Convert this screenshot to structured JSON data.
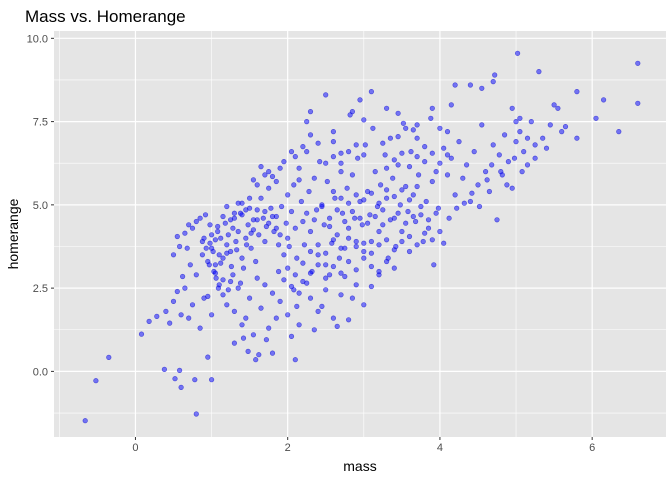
{
  "chart_data": {
    "type": "scatter",
    "title": "Mass vs. Homerange",
    "xlabel": "mass",
    "ylabel": "homerange",
    "xlim": [
      -1.07,
      6.97
    ],
    "ylim": [
      -1.97,
      10.22
    ],
    "x_ticks": [
      0,
      2,
      4,
      6
    ],
    "y_ticks": [
      0.0,
      2.5,
      5.0,
      7.5,
      10.0
    ],
    "x_tick_labels": [
      "0",
      "2",
      "4",
      "6"
    ],
    "y_tick_labels": [
      "0.0",
      "2.5",
      "5.0",
      "7.5",
      "10.0"
    ],
    "grid": true,
    "panel_background": "#e5e5e5",
    "grid_color": "#ffffff",
    "point_color": "#0000ff",
    "point_opacity": 0.5,
    "points": [
      [
        -0.66,
        -1.48
      ],
      [
        -0.52,
        -0.28
      ],
      [
        -0.35,
        0.42
      ],
      [
        0.08,
        1.12
      ],
      [
        0.38,
        0.06
      ],
      [
        0.52,
        -0.22
      ],
      [
        0.58,
        0.03
      ],
      [
        0.6,
        -0.48
      ],
      [
        0.78,
        -0.25
      ],
      [
        0.8,
        -1.28
      ],
      [
        0.95,
        0.43
      ],
      [
        1.0,
        -0.25
      ],
      [
        0.18,
        1.5
      ],
      [
        0.28,
        1.65
      ],
      [
        0.4,
        1.8
      ],
      [
        0.45,
        1.45
      ],
      [
        0.5,
        2.1
      ],
      [
        0.55,
        2.4
      ],
      [
        0.6,
        1.7
      ],
      [
        0.65,
        2.5
      ],
      [
        0.7,
        1.6
      ],
      [
        0.75,
        2.0
      ],
      [
        0.8,
        2.9
      ],
      [
        0.85,
        1.3
      ],
      [
        0.9,
        2.2
      ],
      [
        0.95,
        2.25
      ],
      [
        1.0,
        1.7
      ],
      [
        0.62,
        2.85
      ],
      [
        0.68,
        3.7
      ],
      [
        0.72,
        3.2
      ],
      [
        0.5,
        3.5
      ],
      [
        0.55,
        4.05
      ],
      [
        0.58,
        3.75
      ],
      [
        0.65,
        4.15
      ],
      [
        0.7,
        4.4
      ],
      [
        0.75,
        4.3
      ],
      [
        0.8,
        4.5
      ],
      [
        0.85,
        4.6
      ],
      [
        0.88,
        3.9
      ],
      [
        0.92,
        4.7
      ],
      [
        0.95,
        3.3
      ],
      [
        0.98,
        3.85
      ],
      [
        1.0,
        4.1
      ],
      [
        1.02,
        3.6
      ],
      [
        1.05,
        3.95
      ],
      [
        1.08,
        4.2
      ],
      [
        1.1,
        3.5
      ],
      [
        1.12,
        4.0
      ],
      [
        0.9,
        4.0
      ],
      [
        0.93,
        3.7
      ],
      [
        0.97,
        3.2
      ],
      [
        1.03,
        3.0
      ],
      [
        1.06,
        2.8
      ],
      [
        1.09,
        2.5
      ],
      [
        1.15,
        3.4
      ],
      [
        1.18,
        4.45
      ],
      [
        1.2,
        3.8
      ],
      [
        1.22,
        4.1
      ],
      [
        1.25,
        3.6
      ],
      [
        1.28,
        4.3
      ],
      [
        1.3,
        4.6
      ],
      [
        1.32,
        3.9
      ],
      [
        1.35,
        4.2
      ],
      [
        1.38,
        4.75
      ],
      [
        1.4,
        3.4
      ],
      [
        1.42,
        3.1
      ],
      [
        1.45,
        4.0
      ],
      [
        1.48,
        4.4
      ],
      [
        1.5,
        4.9
      ],
      [
        1.52,
        3.7
      ],
      [
        1.55,
        4.55
      ],
      [
        1.58,
        3.3
      ],
      [
        1.6,
        4.85
      ],
      [
        1.62,
        4.1
      ],
      [
        1.65,
        5.2
      ],
      [
        1.68,
        4.6
      ],
      [
        1.7,
        3.9
      ],
      [
        1.72,
        4.35
      ],
      [
        1.75,
        5.5
      ],
      [
        1.78,
        4.9
      ],
      [
        1.8,
        5.85
      ],
      [
        1.82,
        4.2
      ],
      [
        1.85,
        4.65
      ],
      [
        1.88,
        3.8
      ],
      [
        1.9,
        4.1
      ],
      [
        1.92,
        4.95
      ],
      [
        1.95,
        3.5
      ],
      [
        1.98,
        4.45
      ],
      [
        2.0,
        4.0
      ],
      [
        2.02,
        3.75
      ],
      [
        1.15,
        2.3
      ],
      [
        1.2,
        2.0
      ],
      [
        1.25,
        2.7
      ],
      [
        1.3,
        1.8
      ],
      [
        1.35,
        2.5
      ],
      [
        1.4,
        1.4
      ],
      [
        1.45,
        1.6
      ],
      [
        1.5,
        2.2
      ],
      [
        1.55,
        1.1
      ],
      [
        1.6,
        2.8
      ],
      [
        1.62,
        0.5
      ],
      [
        1.65,
        1.9
      ],
      [
        1.7,
        2.6
      ],
      [
        1.75,
        1.3
      ],
      [
        1.8,
        2.35
      ],
      [
        1.85,
        1.6
      ],
      [
        1.88,
        3.0
      ],
      [
        1.9,
        2.1
      ],
      [
        1.95,
        2.75
      ],
      [
        2.0,
        1.7
      ],
      [
        2.05,
        1.05
      ],
      [
        2.08,
        2.45
      ],
      [
        2.1,
        0.35
      ],
      [
        2.12,
        1.95
      ],
      [
        1.3,
        0.85
      ],
      [
        1.42,
        1.0
      ],
      [
        1.48,
        0.6
      ],
      [
        1.58,
        0.35
      ],
      [
        1.72,
        0.95
      ],
      [
        1.8,
        0.55
      ],
      [
        1.0,
        3.7
      ],
      [
        1.05,
        3.2
      ],
      [
        0.98,
        4.4
      ],
      [
        1.08,
        4.35
      ],
      [
        1.12,
        3.25
      ],
      [
        0.88,
        3.5
      ],
      [
        1.2,
        3.55
      ],
      [
        1.26,
        3.15
      ],
      [
        1.33,
        3.65
      ],
      [
        1.4,
        4.7
      ],
      [
        1.46,
        3.8
      ],
      [
        1.52,
        4.15
      ],
      [
        2.0,
        5.3
      ],
      [
        2.05,
        4.8
      ],
      [
        2.08,
        5.6
      ],
      [
        2.1,
        4.3
      ],
      [
        2.12,
        3.4
      ],
      [
        2.15,
        6.1
      ],
      [
        2.18,
        5.1
      ],
      [
        2.2,
        4.5
      ],
      [
        2.22,
        3.8
      ],
      [
        2.25,
        6.6
      ],
      [
        2.28,
        5.4
      ],
      [
        2.3,
        4.2
      ],
      [
        2.32,
        3.0
      ],
      [
        2.35,
        5.8
      ],
      [
        2.38,
        4.85
      ],
      [
        2.4,
        3.5
      ],
      [
        2.42,
        6.3
      ],
      [
        2.45,
        5.0
      ],
      [
        2.48,
        4.4
      ],
      [
        2.5,
        3.2
      ],
      [
        2.52,
        5.7
      ],
      [
        2.55,
        4.6
      ],
      [
        2.58,
        3.85
      ],
      [
        2.6,
        6.9
      ],
      [
        2.62,
        5.2
      ],
      [
        2.65,
        4.1
      ],
      [
        2.68,
        3.4
      ],
      [
        2.7,
        6.0
      ],
      [
        2.72,
        4.75
      ],
      [
        2.75,
        3.7
      ],
      [
        2.78,
        5.5
      ],
      [
        2.8,
        4.3
      ],
      [
        2.82,
        7.7
      ],
      [
        2.85,
        5.9
      ],
      [
        2.88,
        4.6
      ],
      [
        2.9,
        3.9
      ],
      [
        2.92,
        6.4
      ],
      [
        2.95,
        5.1
      ],
      [
        2.98,
        4.4
      ],
      [
        3.0,
        3.6
      ],
      [
        3.02,
        6.8
      ],
      [
        3.05,
        5.4
      ],
      [
        3.08,
        4.7
      ],
      [
        3.1,
        3.9
      ],
      [
        3.12,
        7.3
      ],
      [
        3.15,
        6.0
      ],
      [
        3.18,
        4.95
      ],
      [
        3.2,
        4.2
      ],
      [
        3.22,
        5.6
      ],
      [
        3.25,
        4.4
      ],
      [
        3.28,
        6.5
      ],
      [
        3.3,
        5.2
      ],
      [
        3.32,
        3.4
      ],
      [
        3.35,
        7.0
      ],
      [
        3.38,
        5.8
      ],
      [
        3.4,
        4.6
      ],
      [
        3.42,
        3.75
      ],
      [
        3.45,
        6.2
      ],
      [
        3.48,
        5.0
      ],
      [
        3.5,
        4.2
      ],
      [
        3.52,
        7.45
      ],
      [
        3.55,
        5.55
      ],
      [
        3.58,
        4.8
      ],
      [
        3.6,
        3.6
      ],
      [
        3.62,
        6.6
      ],
      [
        3.65,
        5.3
      ],
      [
        3.68,
        4.5
      ],
      [
        3.7,
        7.0
      ],
      [
        3.72,
        5.9
      ],
      [
        3.75,
        4.7
      ],
      [
        3.78,
        3.9
      ],
      [
        3.8,
        6.3
      ],
      [
        3.82,
        5.1
      ],
      [
        3.85,
        4.3
      ],
      [
        3.88,
        7.6
      ],
      [
        3.9,
        5.7
      ],
      [
        3.92,
        3.2
      ],
      [
        3.95,
        6.0
      ],
      [
        3.98,
        4.9
      ],
      [
        4.0,
        4.2
      ],
      [
        2.2,
        2.7
      ],
      [
        2.3,
        2.2
      ],
      [
        2.4,
        1.8
      ],
      [
        2.5,
        2.45
      ],
      [
        2.6,
        1.6
      ],
      [
        2.7,
        2.3
      ],
      [
        2.8,
        1.55
      ],
      [
        2.9,
        2.6
      ],
      [
        3.0,
        2.0
      ],
      [
        2.15,
        1.4
      ],
      [
        2.35,
        1.25
      ],
      [
        2.55,
        2.9
      ],
      [
        2.75,
        2.85
      ],
      [
        2.85,
        2.2
      ],
      [
        2.45,
        1.95
      ],
      [
        2.65,
        1.35
      ],
      [
        3.1,
        2.55
      ],
      [
        3.2,
        2.9
      ],
      [
        2.25,
        7.5
      ],
      [
        2.3,
        7.8
      ],
      [
        2.5,
        8.3
      ],
      [
        2.85,
        7.8
      ],
      [
        2.95,
        8.15
      ],
      [
        3.0,
        7.55
      ],
      [
        3.1,
        8.4
      ],
      [
        3.3,
        7.9
      ],
      [
        3.45,
        7.75
      ],
      [
        3.55,
        7.3
      ],
      [
        3.7,
        7.4
      ],
      [
        3.9,
        7.9
      ],
      [
        4.1,
        7.2
      ],
      [
        4.15,
        8.0
      ],
      [
        4.2,
        8.6
      ],
      [
        4.4,
        8.6
      ],
      [
        4.55,
        8.5
      ],
      [
        4.7,
        8.7
      ],
      [
        4.72,
        8.9
      ],
      [
        4.95,
        7.9
      ],
      [
        5.05,
        7.6
      ],
      [
        5.02,
        9.55
      ],
      [
        5.3,
        9.0
      ],
      [
        5.5,
        8.0
      ],
      [
        5.8,
        8.4
      ],
      [
        6.6,
        9.25
      ],
      [
        6.6,
        8.05
      ],
      [
        6.35,
        7.2
      ],
      [
        6.15,
        8.15
      ],
      [
        6.05,
        7.6
      ],
      [
        5.8,
        7.0
      ],
      [
        5.65,
        7.35
      ],
      [
        5.55,
        7.9
      ],
      [
        5.45,
        7.4
      ],
      [
        5.15,
        7.0
      ],
      [
        5.0,
        7.5
      ],
      [
        4.0,
        7.3
      ],
      [
        4.05,
        6.7
      ],
      [
        4.1,
        5.9
      ],
      [
        4.15,
        6.4
      ],
      [
        4.2,
        5.3
      ],
      [
        4.25,
        6.9
      ],
      [
        4.3,
        5.8
      ],
      [
        4.35,
        6.2
      ],
      [
        4.4,
        5.1
      ],
      [
        4.45,
        6.6
      ],
      [
        4.5,
        5.6
      ],
      [
        4.55,
        7.4
      ],
      [
        4.6,
        6.0
      ],
      [
        4.65,
        5.4
      ],
      [
        4.7,
        6.8
      ],
      [
        4.75,
        4.55
      ],
      [
        4.78,
        6.5
      ],
      [
        4.82,
        5.9
      ],
      [
        4.85,
        7.1
      ],
      [
        4.9,
        6.3
      ],
      [
        4.95,
        5.5
      ],
      [
        5.0,
        6.9
      ],
      [
        5.05,
        7.2
      ],
      [
        5.1,
        6.6
      ],
      [
        5.15,
        6.2
      ],
      [
        5.2,
        7.5
      ],
      [
        5.25,
        6.8
      ],
      [
        5.35,
        7.0
      ],
      [
        5.4,
        6.7
      ],
      [
        5.6,
        7.2
      ],
      [
        4.12,
        4.6
      ],
      [
        4.22,
        4.9
      ],
      [
        4.32,
        5.05
      ],
      [
        4.42,
        5.35
      ],
      [
        4.52,
        4.95
      ],
      [
        4.62,
        5.75
      ],
      [
        4.68,
        6.2
      ],
      [
        4.8,
        6.0
      ],
      [
        4.88,
        5.6
      ],
      [
        4.98,
        6.4
      ],
      [
        5.08,
        6.0
      ],
      [
        5.25,
        6.4
      ],
      [
        2.1,
        6.45
      ],
      [
        2.2,
        6.75
      ],
      [
        2.3,
        7.1
      ],
      [
        2.4,
        6.85
      ],
      [
        2.6,
        7.2
      ],
      [
        2.7,
        6.55
      ],
      [
        1.75,
        6.0
      ],
      [
        1.85,
        5.7
      ],
      [
        1.95,
        6.3
      ],
      [
        2.05,
        6.6
      ],
      [
        1.6,
        5.6
      ],
      [
        1.7,
        5.9
      ],
      [
        1.5,
        5.2
      ],
      [
        1.55,
        5.75
      ],
      [
        1.4,
        5.05
      ],
      [
        1.65,
        6.15
      ],
      [
        1.9,
        6.1
      ],
      [
        2.15,
        5.75
      ],
      [
        2.25,
        4.75
      ],
      [
        2.35,
        4.55
      ],
      [
        2.45,
        4.95
      ],
      [
        2.55,
        4.35
      ],
      [
        2.65,
        4.85
      ],
      [
        2.75,
        4.5
      ],
      [
        2.85,
        4.8
      ],
      [
        2.95,
        4.6
      ],
      [
        3.05,
        4.45
      ],
      [
        3.15,
        4.65
      ],
      [
        3.25,
        4.85
      ],
      [
        3.35,
        4.55
      ],
      [
        3.45,
        4.75
      ],
      [
        3.55,
        4.45
      ],
      [
        3.65,
        4.65
      ],
      [
        3.75,
        4.95
      ],
      [
        3.85,
        4.55
      ],
      [
        3.95,
        4.75
      ],
      [
        2.6,
        5.4
      ],
      [
        2.7,
        5.2
      ],
      [
        2.8,
        5.05
      ],
      [
        2.9,
        5.3
      ],
      [
        3.0,
        5.15
      ],
      [
        3.1,
        5.35
      ],
      [
        3.2,
        5.05
      ],
      [
        3.3,
        5.45
      ],
      [
        3.4,
        5.25
      ],
      [
        3.5,
        5.45
      ],
      [
        3.6,
        5.15
      ],
      [
        3.7,
        5.55
      ],
      [
        2.3,
        3.6
      ],
      [
        2.4,
        3.8
      ],
      [
        2.5,
        3.55
      ],
      [
        2.6,
        3.95
      ],
      [
        2.7,
        3.7
      ],
      [
        2.8,
        4.0
      ],
      [
        2.9,
        3.75
      ],
      [
        3.0,
        3.85
      ],
      [
        3.1,
        3.55
      ],
      [
        3.2,
        3.8
      ],
      [
        3.3,
        3.95
      ],
      [
        3.4,
        3.65
      ],
      [
        3.5,
        3.9
      ],
      [
        3.6,
        4.05
      ],
      [
        3.7,
        3.8
      ],
      [
        3.8,
        4.15
      ],
      [
        3.9,
        3.95
      ],
      [
        4.05,
        3.85
      ],
      [
        2.0,
        3.1
      ],
      [
        2.1,
        2.9
      ],
      [
        2.2,
        3.25
      ],
      [
        2.3,
        2.95
      ],
      [
        2.4,
        3.2
      ],
      [
        2.5,
        2.8
      ],
      [
        2.6,
        3.15
      ],
      [
        2.7,
        2.95
      ],
      [
        2.8,
        3.3
      ],
      [
        2.9,
        3.05
      ],
      [
        3.0,
        3.4
      ],
      [
        3.1,
        3.15
      ],
      [
        3.2,
        3.0
      ],
      [
        3.3,
        3.3
      ],
      [
        3.4,
        3.1
      ],
      [
        2.05,
        2.55
      ],
      [
        2.15,
        2.35
      ],
      [
        2.25,
        2.65
      ],
      [
        1.2,
        4.95
      ],
      [
        1.3,
        4.75
      ],
      [
        1.25,
        4.55
      ],
      [
        1.35,
        5.05
      ],
      [
        1.15,
        4.65
      ],
      [
        1.45,
        4.85
      ],
      [
        1.55,
        4.25
      ],
      [
        1.6,
        4.55
      ],
      [
        1.7,
        4.8
      ],
      [
        1.75,
        4.45
      ],
      [
        1.8,
        4.65
      ],
      [
        1.85,
        4.3
      ],
      [
        1.05,
        2.95
      ],
      [
        1.1,
        2.6
      ],
      [
        1.15,
        2.75
      ],
      [
        1.22,
        2.45
      ],
      [
        1.28,
        2.9
      ],
      [
        1.38,
        2.65
      ],
      [
        3.3,
        6.1
      ],
      [
        3.4,
        6.35
      ],
      [
        3.5,
        6.55
      ],
      [
        3.6,
        6.15
      ],
      [
        3.7,
        6.45
      ],
      [
        3.8,
        6.75
      ],
      [
        3.9,
        6.55
      ],
      [
        4.0,
        6.25
      ],
      [
        4.1,
        6.5
      ],
      [
        3.25,
        6.85
      ],
      [
        3.45,
        7.05
      ],
      [
        3.65,
        7.25
      ],
      [
        2.5,
        6.25
      ],
      [
        2.6,
        6.45
      ],
      [
        2.7,
        6.25
      ],
      [
        2.8,
        6.6
      ],
      [
        2.9,
        6.8
      ],
      [
        3.0,
        6.5
      ]
    ]
  }
}
